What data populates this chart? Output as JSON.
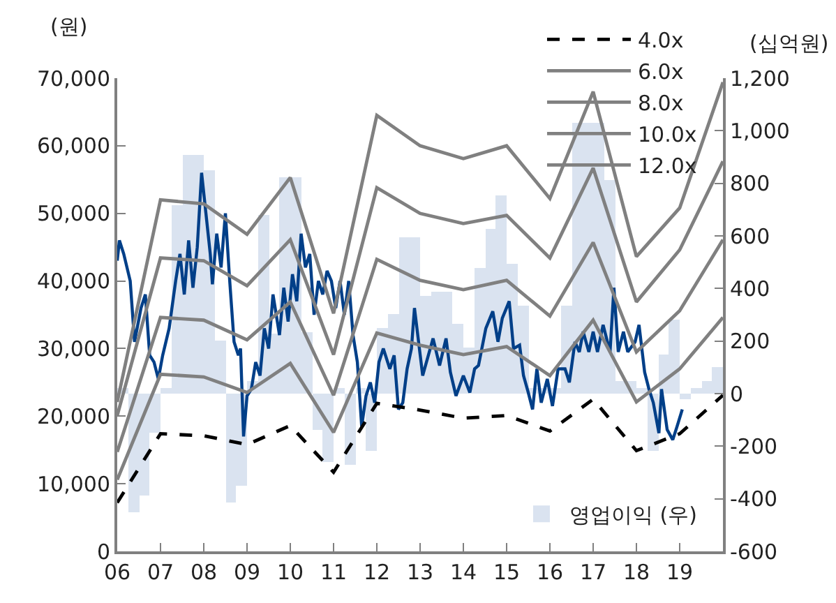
{
  "chart_data": {
    "type": "line",
    "ylabel": "(원)",
    "y2label": "(십억원)",
    "xlim": [
      2006,
      2020
    ],
    "xticks": [
      {
        "value": 2006,
        "label": "06"
      },
      {
        "value": 2007,
        "label": "07"
      },
      {
        "value": 2008,
        "label": "08"
      },
      {
        "value": 2009,
        "label": "09"
      },
      {
        "value": 2010,
        "label": "10"
      },
      {
        "value": 2011,
        "label": "11"
      },
      {
        "value": 2012,
        "label": "12"
      },
      {
        "value": 2013,
        "label": "13"
      },
      {
        "value": 2014,
        "label": "14"
      },
      {
        "value": 2015,
        "label": "15"
      },
      {
        "value": 2016,
        "label": "16"
      },
      {
        "value": 2017,
        "label": "17"
      },
      {
        "value": 2018,
        "label": "18"
      },
      {
        "value": 2019,
        "label": "19"
      }
    ],
    "ylim": [
      0,
      70000
    ],
    "yticks": [
      0,
      {
        "value": 10000,
        "label": "10,000"
      },
      {
        "value": 20000,
        "label": "20,000"
      },
      {
        "value": 30000,
        "label": "30,000"
      },
      {
        "value": 40000,
        "label": "40,000"
      },
      {
        "value": 50000,
        "label": "50,000"
      },
      {
        "value": 60000,
        "label": "60,000"
      },
      {
        "value": 70000,
        "label": "70,000"
      }
    ],
    "y2lim": [
      -600,
      1200
    ],
    "y2ticks": [
      -600,
      -400,
      -200,
      0,
      200,
      400,
      600,
      800,
      {
        "value": 1000,
        "label": "1,000"
      },
      {
        "value": 1200,
        "label": "1,200"
      }
    ],
    "grid": false,
    "legend": "top right",
    "marker": "none",
    "series": [
      {
        "type": "bar",
        "axis": "y2",
        "name": "영업이익 (우)",
        "color": "#dae3f0",
        "x": [
          2006.125,
          2006.375,
          2006.625,
          2006.875,
          2007.125,
          2007.375,
          2007.625,
          2007.875,
          2008.125,
          2008.375,
          2008.625,
          2008.875,
          2009.125,
          2009.375,
          2009.625,
          2009.875,
          2010.125,
          2010.375,
          2010.625,
          2010.875,
          2011.125,
          2011.375,
          2011.625,
          2011.875,
          2012.125,
          2012.375,
          2012.625,
          2012.875,
          2013.125,
          2013.375,
          2013.625,
          2013.875,
          2014.125,
          2014.375,
          2014.625,
          2014.875,
          2015.125,
          2015.375,
          2015.625,
          2015.875,
          2016.125,
          2016.375,
          2016.625,
          2016.875,
          2017.125,
          2017.375,
          2017.625,
          2017.875,
          2018.125,
          2018.375,
          2018.625,
          2018.875,
          2019.125,
          2019.375,
          2019.625,
          2019.875
        ],
        "values": [
          20,
          -450,
          -390,
          -150,
          20,
          716,
          910,
          910,
          847,
          200,
          -416,
          -353,
          50,
          680,
          230,
          821,
          821,
          232,
          -137,
          -258,
          20,
          -273,
          20,
          -216,
          250,
          305,
          594,
          594,
          373,
          390,
          390,
          268,
          173,
          479,
          626,
          752,
          495,
          337,
          20,
          20,
          20,
          332,
          1030,
          1030,
          1030,
          810,
          50,
          50,
          20,
          -220,
          150,
          280,
          -20,
          20,
          50,
          100
        ]
      },
      {
        "color": "#003f88",
        "x": [
          2006.0,
          2006.05,
          2006.15,
          2006.3,
          2006.4,
          2006.55,
          2006.65,
          2006.75,
          2006.85,
          2006.95,
          2007.05,
          2007.2,
          2007.35,
          2007.45,
          2007.55,
          2007.65,
          2007.75,
          2007.85,
          2007.95,
          2008.05,
          2008.15,
          2008.2,
          2008.3,
          2008.4,
          2008.5,
          2008.6,
          2008.7,
          2008.8,
          2008.85,
          2008.92,
          2009.0,
          2009.1,
          2009.2,
          2009.3,
          2009.4,
          2009.5,
          2009.6,
          2009.75,
          2009.85,
          2009.95,
          2010.05,
          2010.15,
          2010.25,
          2010.35,
          2010.45,
          2010.55,
          2010.65,
          2010.75,
          2010.85,
          2010.95,
          2011.05,
          2011.15,
          2011.25,
          2011.35,
          2011.45,
          2011.55,
          2011.65,
          2011.75,
          2011.85,
          2011.95,
          2012.05,
          2012.15,
          2012.3,
          2012.4,
          2012.5,
          2012.6,
          2012.7,
          2012.8,
          2012.87,
          2013.06,
          2013.3,
          2013.45,
          2013.6,
          2013.7,
          2013.83,
          2014.0,
          2014.15,
          2014.26,
          2014.35,
          2014.52,
          2014.68,
          2014.8,
          2014.9,
          2015.06,
          2015.16,
          2015.3,
          2015.39,
          2015.5,
          2015.6,
          2015.7,
          2015.8,
          2015.94,
          2016.06,
          2016.19,
          2016.35,
          2016.45,
          2016.58,
          2016.68,
          2016.77,
          2016.9,
          2017.0,
          2017.1,
          2017.23,
          2017.39,
          2017.48,
          2017.58,
          2017.7,
          2017.8,
          2017.97,
          2018.06,
          2018.19,
          2018.29,
          2018.39,
          2018.52,
          2018.58,
          2018.71,
          2018.84,
          2018.94,
          2019.06
        ],
        "values": [
          43000,
          46000,
          44000,
          40000,
          31000,
          36000,
          38000,
          29000,
          28000,
          25500,
          29000,
          33000,
          40000,
          44000,
          38000,
          46000,
          39000,
          45000,
          56000,
          50000,
          44000,
          39500,
          47000,
          42000,
          50000,
          40000,
          31000,
          29000,
          30000,
          17000,
          23000,
          24000,
          28000,
          26000,
          33000,
          30000,
          38000,
          32000,
          39000,
          34000,
          41000,
          37000,
          47000,
          42000,
          44000,
          35000,
          40000,
          38000,
          41500,
          40000,
          36000,
          40000,
          35000,
          40000,
          32000,
          28000,
          18500,
          23000,
          25000,
          22000,
          28000,
          30000,
          27000,
          29000,
          21000,
          22000,
          27000,
          30000,
          36000,
          26000,
          31500,
          27500,
          31500,
          26500,
          23000,
          26000,
          23500,
          27000,
          27500,
          33000,
          35500,
          31000,
          34500,
          37000,
          30000,
          30500,
          26000,
          23500,
          21000,
          27000,
          22000,
          25500,
          21500,
          27000,
          27000,
          25000,
          31000,
          29500,
          32500,
          29500,
          32500,
          29500,
          33500,
          29500,
          39000,
          29500,
          32500,
          29500,
          31000,
          33500,
          26500,
          24000,
          22000,
          17500,
          24000,
          18000,
          16500,
          18500,
          21000
        ]
      },
      {
        "name": "4.0x",
        "color": "#000000",
        "line_style": "dashed",
        "x": [
          2006,
          2007,
          2008,
          2009,
          2010,
          2011,
          2012,
          2013,
          2014,
          2015,
          2016,
          2017,
          2018,
          2019,
          2020
        ],
        "values": [
          7200,
          17400,
          17100,
          15800,
          18600,
          11700,
          21900,
          20900,
          19700,
          20100,
          17800,
          22500,
          14900,
          17400,
          23100
        ]
      },
      {
        "name": "6.0x",
        "color": "#808080",
        "x": [
          2006,
          2007,
          2008,
          2009,
          2010,
          2011,
          2012,
          2013,
          2014,
          2015,
          2016,
          2017,
          2018,
          2019,
          2020
        ],
        "values": [
          10600,
          26200,
          25800,
          23500,
          27800,
          17600,
          32300,
          30500,
          29100,
          30300,
          26000,
          34200,
          22100,
          27000,
          34600
        ]
      },
      {
        "name": "8.0x",
        "color": "#808080",
        "x": [
          2006,
          2007,
          2008,
          2009,
          2010,
          2011,
          2012,
          2013,
          2014,
          2015,
          2016,
          2017,
          2018,
          2019,
          2020
        ],
        "values": [
          14700,
          34600,
          34200,
          31300,
          36900,
          23100,
          43200,
          40100,
          38700,
          40100,
          34800,
          45700,
          29500,
          35600,
          46100
        ]
      },
      {
        "name": "10.0x",
        "color": "#808080",
        "x": [
          2006,
          2007,
          2008,
          2009,
          2010,
          2011,
          2012,
          2013,
          2014,
          2015,
          2016,
          2017,
          2018,
          2019,
          2020
        ],
        "values": [
          20100,
          43400,
          43000,
          39300,
          46100,
          29100,
          53800,
          50000,
          48500,
          49700,
          43400,
          56700,
          36900,
          44600,
          57700
        ]
      },
      {
        "name": "12.0x",
        "color": "#808080",
        "x": [
          2006,
          2007,
          2008,
          2009,
          2010,
          2011,
          2012,
          2013,
          2014,
          2015,
          2016,
          2017,
          2018,
          2019,
          2020
        ],
        "values": [
          22100,
          52000,
          51400,
          46900,
          55300,
          35200,
          64500,
          60000,
          58100,
          60000,
          52200,
          68000,
          43600,
          50800,
          69400
        ]
      }
    ]
  }
}
